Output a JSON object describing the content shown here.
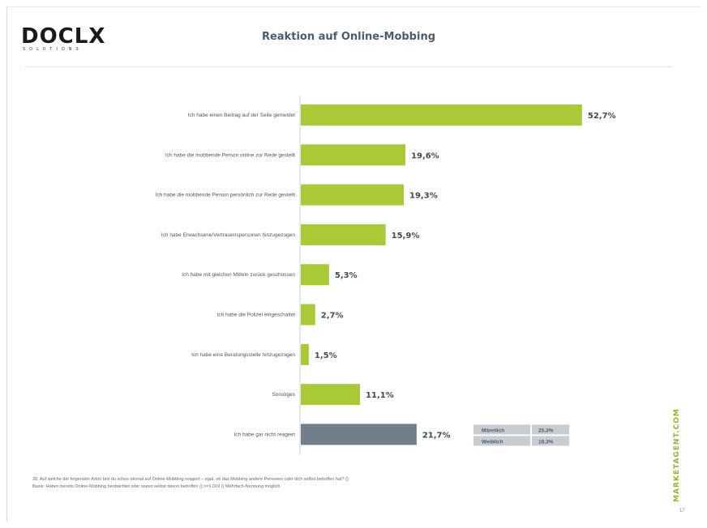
{
  "header": {
    "logo_text": "DOCLX",
    "logo_subtext": "SOLUTIONS",
    "title": "Reaktion auf Online-Mobbing"
  },
  "colors": {
    "accent_bar": "#a9c936",
    "highlight_bar": "#727e8b",
    "title_text": "#4d5b6a",
    "brand": "#93b534"
  },
  "chart_data": {
    "type": "bar",
    "orientation": "horizontal",
    "title": "Reaktion auf Online-Mobbing",
    "xlabel": "",
    "ylabel": "",
    "xlim": [
      0,
      55
    ],
    "grid": false,
    "legend": "none",
    "categories": [
      "Ich habe einen Beitrag auf der Seite gemeldet",
      "Ich habe die mobbende Person online zur Rede gestellt",
      "Ich habe die mobbende Person persönlich zur Rede gestellt",
      "Ich habe Erwachsene/Vertrauenspersonen hinzugezogen",
      "Ich habe mit gleichen Mitteln zurück geschossen",
      "Ich habe die Polizei eingeschaltet",
      "Ich habe eine Beratungsstelle hinzugezogen",
      "Sonstiges",
      "Ich habe gar nicht reagiert"
    ],
    "values": [
      52.7,
      19.6,
      19.3,
      15.9,
      5.3,
      2.7,
      1.5,
      11.1,
      21.7
    ],
    "value_labels": [
      "52,7%",
      "19,6%",
      "19,3%",
      "15,9%",
      "5,3%",
      "2,7%",
      "1,5%",
      "11,1%",
      "21,7%"
    ],
    "highlighted_index": 8,
    "breakdown": [
      {
        "label": "Männlich",
        "value": 25.3,
        "value_label": "25,3%"
      },
      {
        "label": "Weiblich",
        "value": 18.3,
        "value_label": "18,3%"
      }
    ]
  },
  "footnote": {
    "line1": "28. Auf welche der folgenden Arten bist du schon einmal auf Online-Mobbing reagiert – egal, ob das Mobbing andere Personen oder dich selbst betroffen hat? ()",
    "line2": "Basis: Haben bereits Online-Mobbing beobachtet oder waren selbst davon betroffen () n=1.019 () Mehrfach-Nennung möglich"
  },
  "brand_text": "MARKETAGENT.COM",
  "page_number": "17"
}
